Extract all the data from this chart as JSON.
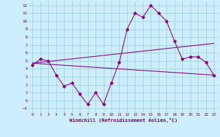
{
  "xlabel": "Windchill (Refroidissement éolien,°C)",
  "bg_color": "#cceeff",
  "grid_color": "#99cccc",
  "line_color": "#880088",
  "ylim": [
    -1.5,
    12.5
  ],
  "xlim": [
    -0.5,
    23.5
  ],
  "yticks": [
    -1,
    0,
    1,
    2,
    3,
    4,
    5,
    6,
    7,
    8,
    9,
    10,
    11,
    12
  ],
  "xticks": [
    0,
    1,
    2,
    3,
    4,
    5,
    6,
    7,
    8,
    9,
    10,
    11,
    12,
    13,
    14,
    15,
    16,
    17,
    18,
    19,
    20,
    21,
    22,
    23
  ],
  "line1_x": [
    0,
    1,
    2,
    3,
    4,
    5,
    6,
    7,
    8,
    9,
    10,
    11,
    12,
    13,
    14,
    15,
    16,
    17,
    18,
    19,
    20,
    21,
    22,
    23
  ],
  "line1_y": [
    4.5,
    5.2,
    5.0,
    3.2,
    1.8,
    2.2,
    0.8,
    -0.5,
    1.0,
    -0.5,
    2.2,
    4.8,
    9.0,
    11.0,
    10.5,
    12.0,
    11.0,
    10.0,
    7.5,
    5.2,
    5.5,
    5.5,
    4.8,
    3.2
  ],
  "line2_x": [
    0,
    23
  ],
  "line2_y": [
    4.7,
    7.2
  ],
  "line3_x": [
    0,
    23
  ],
  "line3_y": [
    4.7,
    3.2
  ]
}
